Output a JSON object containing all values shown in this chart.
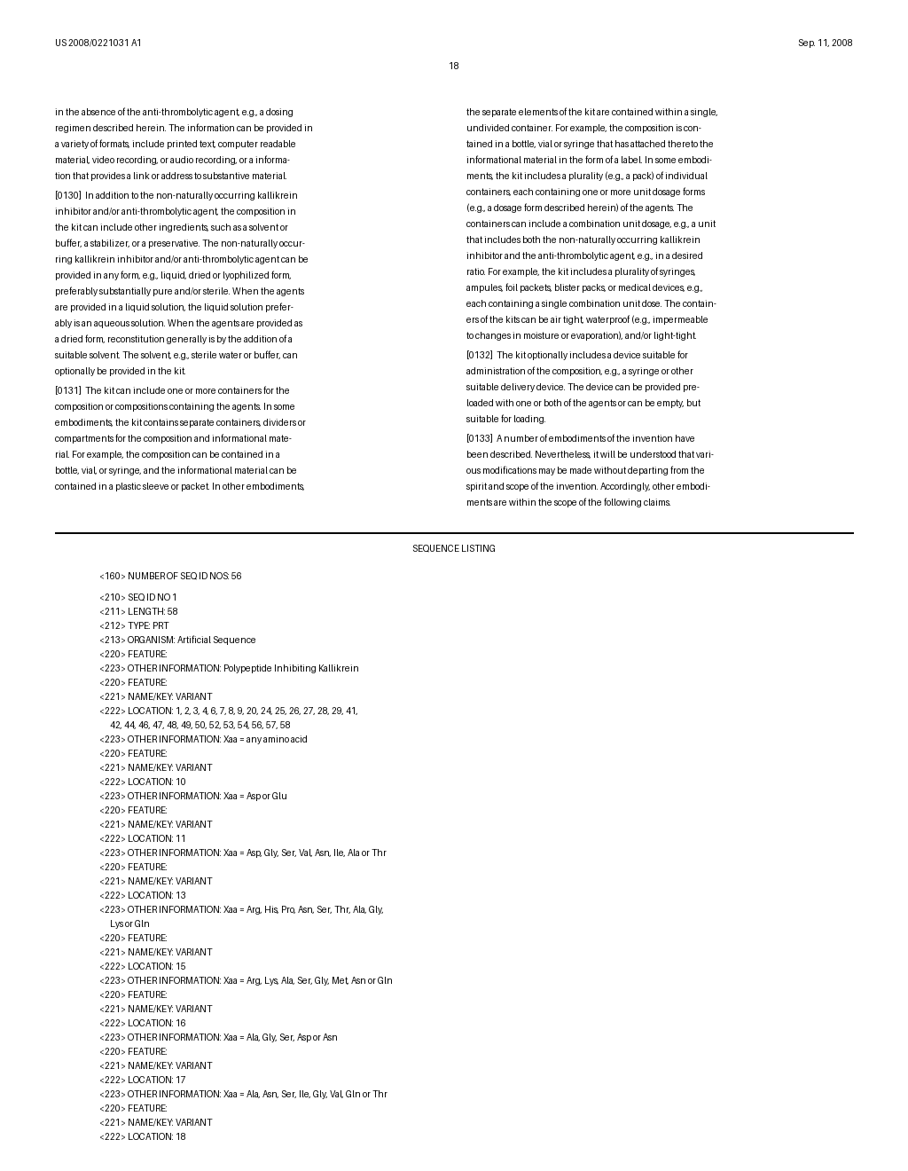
{
  "background_color": "#ffffff",
  "header_left": "US 2008/0221031 A1",
  "header_right": "Sep. 11, 2008",
  "page_number": "18",
  "left_col_lines": [
    "in the absence of the anti-thrombolytic agent, e.g., a dosing",
    "regimen described herein. The information can be provided in",
    "a variety of formats, include printed text, computer readable",
    "material, video recording, or audio recording, or a informa-",
    "tion that provides a link or address to substantive material.",
    "BLANK",
    "[0130]_In addition to the non-naturally occurring kallikrein",
    "inhibitor and/or anti-thrombolytic agent, the composition in",
    "the kit can include other ingredients, such as a solvent or",
    "buffer, a stabilizer, or a preservative. The non-naturally occur-",
    "ring kallikrein inhibitor and/or anti-thrombolytic agent can be",
    "provided in any form, e.g., liquid, dried or lyophilized form,",
    "preferably substantially pure and/or sterile. When the agents",
    "are provided in a liquid solution, the liquid solution prefer-",
    "ably is an aqueous solution. When the agents are provided as",
    "a dried form, reconstitution generally is by the addition of a",
    "suitable solvent. The solvent, e.g., sterile water or buffer, can",
    "optionally be provided in the kit.",
    "BLANK",
    "[0131]_The kit can include one or more containers for the",
    "composition or compositions containing the agents. In some",
    "embodiments, the kit contains separate containers, dividers or",
    "compartments for the composition and informational mate-",
    "rial. For example, the composition can be contained in a",
    "bottle, vial, or syringe, and the informational material can be",
    "contained in a plastic sleeve or packet. In other embodiments,"
  ],
  "right_col_lines": [
    "the separate elements of the kit are contained within a single,",
    "undivided container. For example, the composition is con-",
    "tained in a bottle, vial or syringe that has attached thereto the",
    "informational material in the form of a label. In some embodi-",
    "ments, the kit includes a plurality (e.g., a pack) of individual",
    "containers, each containing one or more unit dosage forms",
    "(e.g., a dosage form described herein) of the agents. The",
    "containers can include a combination unit dosage, e.g., a unit",
    "that includes both the non-naturally occurring kallikrein",
    "inhibitor and the anti-thrombolytic agent, e.g., in a desired",
    "ratio. For example, the kit includes a plurality of syringes,",
    "ampules, foil packets, blister packs, or medical devices, e.g.,",
    "each containing a single combination unit dose. The contain-",
    "ers of the kits can be air tight, waterproof (e.g., impermeable",
    "to changes in moisture or evaporation), and/or light-tight.",
    "BLANK",
    "[0132]_The kit optionally includes a device suitable for",
    "administration of the composition, e.g., a syringe or other",
    "suitable delivery device. The device can be provided pre-",
    "loaded with one or both of the agents or can be empty, but",
    "suitable for loading.",
    "BLANK",
    "[0133]_A number of embodiments of the invention have",
    "been described. Nevertheless, it will be understood that vari-",
    "ous modifications may be made without departing from the",
    "spirit and scope of the invention. Accordingly, other embodi-",
    "ments are within the scope of the following claims."
  ],
  "seq_lines": [
    "BLANK",
    "<160> NUMBER OF SEQ ID NOS: 56",
    "BLANK",
    "<210> SEQ ID NO 1",
    "<211> LENGTH: 58",
    "<212> TYPE: PRT",
    "<213> ORGANISM: Artificial Sequence",
    "<220> FEATURE:",
    "<223> OTHER INFORMATION: Polypeptide Inhibiting Kallikrein",
    "<220> FEATURE:",
    "<221> NAME/KEY: VARIANT",
    "<222> LOCATION: 1, 2, 3, 4, 6, 7, 8, 9, 20, 24, 25, 26, 27, 28, 29, 41,",
    "      42, 44, 46, 47, 48, 49, 50, 52, 53, 54, 56, 57, 58",
    "<223> OTHER INFORMATION: Xaa = any amino acid",
    "<220> FEATURE:",
    "<221> NAME/KEY: VARIANT",
    "<222> LOCATION: 10",
    "<223> OTHER INFORMATION: Xaa = Asp or Glu",
    "<220> FEATURE:",
    "<221> NAME/KEY: VARIANT",
    "<222> LOCATION: 11",
    "<223> OTHER INFORMATION: Xaa = Asp, Gly, Ser, Val, Asn, Ile, Ala or Thr",
    "<220> FEATURE:",
    "<221> NAME/KEY: VARIANT",
    "<222> LOCATION: 13",
    "<223> OTHER INFORMATION: Xaa = Arg, His, Pro, Asn, Ser, Thr, Ala, Gly,",
    "      Lys or Gln",
    "<220> FEATURE:",
    "<221> NAME/KEY: VARIANT",
    "<222> LOCATION: 15",
    "<223> OTHER INFORMATION: Xaa = Arg, Lys, Ala, Ser, Gly, Met, Asn or Gln",
    "<220> FEATURE:",
    "<221> NAME/KEY: VARIANT",
    "<222> LOCATION: 16",
    "<223> OTHER INFORMATION: Xaa = Ala, Gly, Ser, Asp or Asn",
    "<220> FEATURE:",
    "<221> NAME/KEY: VARIANT",
    "<222> LOCATION: 17",
    "<223> OTHER INFORMATION: Xaa = Ala, Asn, Ser, Ile, Gly, Val, Gln or Thr",
    "<220> FEATURE:",
    "<221> NAME/KEY: VARIANT",
    "<222> LOCATION: 18"
  ]
}
